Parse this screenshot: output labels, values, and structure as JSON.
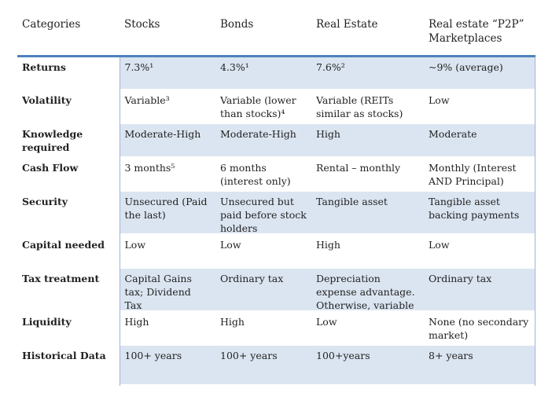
{
  "colors": {
    "header_rule": "#4f81bd",
    "band": "#dbe5f1",
    "edge": "#9fb5d3"
  },
  "headers": [
    "Categories",
    "Stocks",
    "Bonds",
    "Real Estate",
    "Real estate “P2P” Marketplaces"
  ],
  "rows": [
    {
      "category": "Returns",
      "cells": [
        "7.3%¹",
        "4.3%¹",
        "7.6%²",
        "~9% (average)"
      ]
    },
    {
      "category": "Volatility",
      "cells": [
        "Variable³",
        "Variable (lower than stocks)⁴",
        "Variable (REITs similar as stocks)",
        "Low"
      ]
    },
    {
      "category": "Knowledge required",
      "cells": [
        "Moderate-High",
        "Moderate-High",
        "High",
        "Moderate"
      ]
    },
    {
      "category": "Cash Flow",
      "cells": [
        "3 months⁵",
        "6 months (interest only)",
        "Rental – monthly",
        "Monthly (Interest AND Principal)"
      ]
    },
    {
      "category": "Security",
      "cells": [
        "Unsecured (Paid the last)",
        "Unsecured but paid before stock holders",
        "Tangible asset",
        "Tangible asset backing payments"
      ]
    },
    {
      "category": "Capital needed",
      "cells": [
        "Low",
        "Low",
        "High",
        "Low"
      ]
    },
    {
      "category": "Tax treatment",
      "cells": [
        "Capital Gains tax; Dividend Tax",
        "Ordinary tax",
        "Depreciation expense advantage. Otherwise, variable",
        "Ordinary tax"
      ]
    },
    {
      "category": "Liquidity",
      "cells": [
        "High",
        "High",
        "Low",
        "None (no secondary market)"
      ]
    },
    {
      "category": "Historical Data",
      "cells": [
        "100+ years",
        "100+ years",
        "100+years",
        "8+ years"
      ]
    }
  ]
}
